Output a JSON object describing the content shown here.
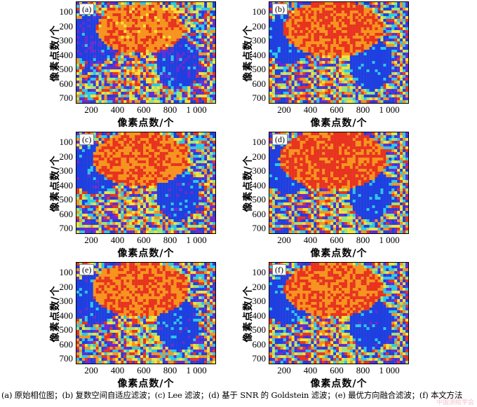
{
  "axes": {
    "yticks": [
      "100",
      "200",
      "300",
      "400",
      "500",
      "600",
      "700"
    ],
    "xticks": [
      "200",
      "400",
      "600",
      "800",
      "1 000"
    ],
    "ylabel": "像素点数/个",
    "xlabel": "像素点数/个"
  },
  "panels": [
    {
      "tag": "(a)",
      "smooth": 0.0,
      "noise": 0.45
    },
    {
      "tag": "(b)",
      "smooth": 0.45,
      "noise": 0.2
    },
    {
      "tag": "(c)",
      "smooth": 0.3,
      "noise": 0.3
    },
    {
      "tag": "(d)",
      "smooth": 0.75,
      "noise": 0.08
    },
    {
      "tag": "(e)",
      "smooth": 0.35,
      "noise": 0.25
    },
    {
      "tag": "(f)",
      "smooth": 0.4,
      "noise": 0.22
    }
  ],
  "caption": "(a) 原始相位图；(b) 复数空间自适应滤波；(c) Lee 滤波；(d) 基于 SNR 的 Goldstein 滤波；(e) 最优方向融合滤波；(f) 本文方法",
  "watermark": "中国测绘学会",
  "colors": {
    "red": "#e8331f",
    "orange": "#f7931e",
    "yellow": "#f5e13a",
    "cyan": "#2ec6e8",
    "blue": "#1f3fe0"
  }
}
